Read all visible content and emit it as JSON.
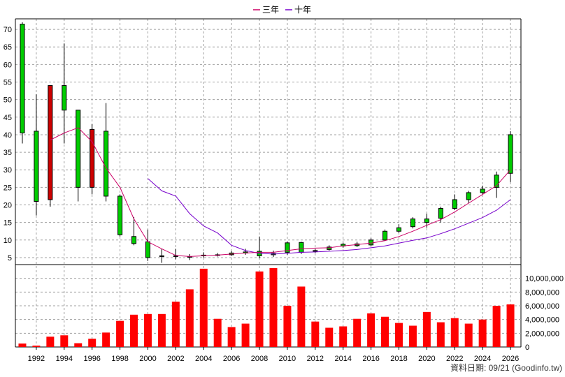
{
  "chart_data": [
    {
      "type": "candlestick",
      "legend": [
        {
          "name": "三年",
          "color": "#cc0066"
        },
        {
          "name": "十年",
          "color": "#7700cc"
        }
      ],
      "legend_position": "top-center",
      "grid": true,
      "ylim": [
        3,
        73
      ],
      "yticks": [
        "5",
        "10",
        "15",
        "20",
        "25",
        "30",
        "35",
        "40",
        "45",
        "50",
        "55",
        "60",
        "65",
        "70"
      ],
      "candles": [
        {
          "year": 1991,
          "open": 40.5,
          "close": 71.5,
          "high": 72,
          "low": 37.5
        },
        {
          "year": 1992,
          "open": 21,
          "close": 41,
          "high": 51.5,
          "low": 17
        },
        {
          "year": 1993,
          "open": 54,
          "close": 21.5,
          "high": 54,
          "low": 19.5
        },
        {
          "year": 1994,
          "open": 47,
          "close": 54,
          "high": 66,
          "low": 37.5
        },
        {
          "year": 1995,
          "open": 25,
          "close": 47,
          "high": 47,
          "low": 21
        },
        {
          "year": 1996,
          "open": 41.5,
          "close": 25,
          "high": 43,
          "low": 23
        },
        {
          "year": 1997,
          "open": 22.5,
          "close": 41,
          "high": 49,
          "low": 21
        },
        {
          "year": 1998,
          "open": 11.5,
          "close": 22.5,
          "high": 23,
          "low": 11
        },
        {
          "year": 1999,
          "open": 9,
          "close": 11,
          "high": 16.5,
          "low": 8.5
        },
        {
          "year": 2000,
          "open": 5,
          "close": 9.5,
          "high": 13,
          "low": 4
        },
        {
          "year": 2001,
          "open": 5.5,
          "close": 5.5,
          "high": 7.5,
          "low": 3.5
        },
        {
          "year": 2002,
          "open": 5.5,
          "close": 5.5,
          "high": 7.5,
          "low": 4.5
        },
        {
          "year": 2003,
          "open": 5.3,
          "close": 5.3,
          "high": 6,
          "low": 4.3
        },
        {
          "year": 2004,
          "open": 5.7,
          "close": 5.5,
          "high": 6.5,
          "low": 5
        },
        {
          "year": 2005,
          "open": 5.6,
          "close": 5.8,
          "high": 6.3,
          "low": 5.3
        },
        {
          "year": 2006,
          "open": 5.8,
          "close": 6.3,
          "high": 6.8,
          "low": 5.5
        },
        {
          "year": 2007,
          "open": 6.3,
          "close": 6.6,
          "high": 7.5,
          "low": 5.8
        },
        {
          "year": 2008,
          "open": 5.5,
          "close": 6.8,
          "high": 11,
          "low": 4.8
        },
        {
          "year": 2009,
          "open": 5.8,
          "close": 6.2,
          "high": 7,
          "low": 5.2
        },
        {
          "year": 2010,
          "open": 6.5,
          "close": 9.2,
          "high": 9.5,
          "low": 5.8
        },
        {
          "year": 2011,
          "open": 6.5,
          "close": 9.3,
          "high": 9.5,
          "low": 6
        },
        {
          "year": 2012,
          "open": 6.8,
          "close": 7,
          "high": 7.5,
          "low": 6.3
        },
        {
          "year": 2013,
          "open": 7.3,
          "close": 8,
          "high": 8.5,
          "low": 7
        },
        {
          "year": 2014,
          "open": 8.3,
          "close": 8.8,
          "high": 9.2,
          "low": 7.8
        },
        {
          "year": 2015,
          "open": 8.4,
          "close": 8.9,
          "high": 9.5,
          "low": 8
        },
        {
          "year": 2016,
          "open": 8.6,
          "close": 10,
          "high": 10.5,
          "low": 8.3
        },
        {
          "year": 2017,
          "open": 10,
          "close": 12.5,
          "high": 13,
          "low": 9.8
        },
        {
          "year": 2018,
          "open": 12.5,
          "close": 13.5,
          "high": 14.5,
          "low": 12
        },
        {
          "year": 2019,
          "open": 13.8,
          "close": 16,
          "high": 16.5,
          "low": 13.3
        },
        {
          "year": 2020,
          "open": 15,
          "close": 16,
          "high": 17.5,
          "low": 13.5
        },
        {
          "year": 2021,
          "open": 16.2,
          "close": 19,
          "high": 19.5,
          "low": 15
        },
        {
          "year": 2022,
          "open": 19,
          "close": 21.5,
          "high": 23,
          "low": 18.5
        },
        {
          "year": 2023,
          "open": 21.5,
          "close": 23.5,
          "high": 24,
          "low": 20.5
        },
        {
          "year": 2024,
          "open": 23.5,
          "close": 24.5,
          "high": 25.5,
          "low": 23
        },
        {
          "year": 2025,
          "open": 25,
          "close": 28.5,
          "high": 29.5,
          "low": 22
        },
        {
          "year": 2026,
          "open": 29,
          "close": 40,
          "high": 41,
          "low": 26.5
        }
      ],
      "ma_3yr": {
        "name": "三年",
        "points": [
          [
            1993,
            38.5
          ],
          [
            1994,
            40.5
          ],
          [
            1995,
            42
          ],
          [
            1996,
            38
          ],
          [
            1997,
            30.5
          ],
          [
            1998,
            25
          ],
          [
            1999,
            16
          ],
          [
            2000,
            9.5
          ],
          [
            2001,
            7.5
          ],
          [
            2002,
            5.6
          ],
          [
            2003,
            5.3
          ],
          [
            2004,
            5.5
          ],
          [
            2005,
            5.7
          ],
          [
            2006,
            6
          ],
          [
            2007,
            6.3
          ],
          [
            2008,
            6.5
          ],
          [
            2009,
            6.5
          ],
          [
            2010,
            7
          ],
          [
            2011,
            7.5
          ],
          [
            2012,
            7.7
          ],
          [
            2013,
            7.8
          ],
          [
            2014,
            8.3
          ],
          [
            2015,
            8.7
          ],
          [
            2016,
            9.1
          ],
          [
            2017,
            9.8
          ],
          [
            2018,
            11
          ],
          [
            2019,
            12.5
          ],
          [
            2020,
            14.2
          ],
          [
            2021,
            15.8
          ],
          [
            2022,
            18
          ],
          [
            2023,
            20.5
          ],
          [
            2024,
            23
          ],
          [
            2025,
            25.5
          ],
          [
            2026,
            30
          ]
        ]
      },
      "ma_10yr": {
        "name": "十年",
        "points": [
          [
            2000,
            27.5
          ],
          [
            2001,
            24
          ],
          [
            2002,
            22.5
          ],
          [
            2003,
            17.5
          ],
          [
            2004,
            14
          ],
          [
            2005,
            12
          ],
          [
            2006,
            8.5
          ],
          [
            2007,
            7
          ],
          [
            2008,
            6.2
          ],
          [
            2009,
            6
          ],
          [
            2010,
            6.2
          ],
          [
            2011,
            6.5
          ],
          [
            2012,
            6.6
          ],
          [
            2013,
            6.8
          ],
          [
            2014,
            7
          ],
          [
            2015,
            7.3
          ],
          [
            2016,
            7.8
          ],
          [
            2017,
            8.3
          ],
          [
            2018,
            9.1
          ],
          [
            2019,
            9.9
          ],
          [
            2020,
            10.6
          ],
          [
            2021,
            11.8
          ],
          [
            2022,
            13.2
          ],
          [
            2023,
            14.8
          ],
          [
            2024,
            16.4
          ],
          [
            2025,
            18.5
          ],
          [
            2026,
            21.5
          ]
        ]
      }
    },
    {
      "type": "bar",
      "ylim": [
        0,
        12000000
      ],
      "yticks": [
        "0",
        "2,000,000",
        "4,000,000",
        "6,000,000",
        "8,000,000",
        "10,000,000"
      ],
      "bar_color": "#ff0000",
      "categories": [
        1991,
        1992,
        1993,
        1994,
        1995,
        1996,
        1997,
        1998,
        1999,
        2000,
        2001,
        2002,
        2003,
        2004,
        2005,
        2006,
        2007,
        2008,
        2009,
        2010,
        2011,
        2012,
        2013,
        2014,
        2015,
        2016,
        2017,
        2018,
        2019,
        2020,
        2021,
        2022,
        2023,
        2024,
        2025,
        2026
      ],
      "values": [
        500000,
        200000,
        1500000,
        1700000,
        550000,
        1200000,
        2100000,
        3800000,
        4700000,
        4800000,
        4800000,
        6600000,
        8400000,
        11400000,
        4100000,
        2900000,
        3400000,
        11000000,
        11500000,
        6000000,
        8800000,
        3700000,
        2800000,
        3000000,
        4100000,
        4900000,
        4400000,
        3500000,
        3100000,
        5100000,
        3600000,
        4200000,
        3400000,
        4000000,
        6000000,
        6200000
      ]
    }
  ],
  "x_axis": {
    "labels": [
      "1992",
      "1994",
      "1996",
      "1998",
      "2000",
      "2002",
      "2004",
      "2006",
      "2008",
      "2010",
      "2012",
      "2014",
      "2016",
      "2018",
      "2020",
      "2022",
      "2024",
      "2026"
    ]
  },
  "footer": {
    "note": "資料日期: 09/21  (Goodinfo.tw)"
  }
}
